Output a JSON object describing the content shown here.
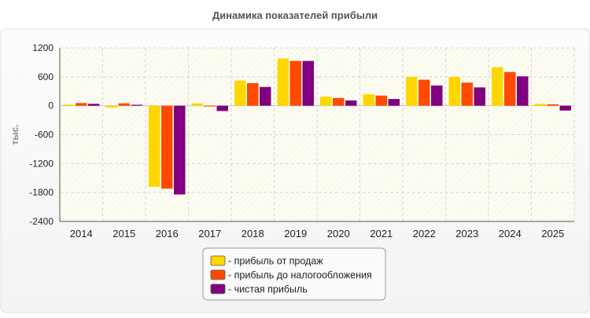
{
  "chart_data": {
    "type": "bar",
    "title": "Динамика показателей прибыли",
    "ylabel": "тыс.",
    "xlabel": "",
    "ylim": [
      -2400,
      1200
    ],
    "yticks": [
      1200,
      600,
      0,
      -600,
      -1200,
      -1800,
      -2400
    ],
    "categories": [
      "2014",
      "2015",
      "2016",
      "2017",
      "2018",
      "2019",
      "2020",
      "2021",
      "2022",
      "2023",
      "2024",
      "2025"
    ],
    "series": [
      {
        "name": "- прибыль от продаж",
        "color": "#ffd700",
        "values": [
          25,
          -40,
          -1680,
          50,
          520,
          980,
          190,
          240,
          600,
          600,
          800,
          40
        ]
      },
      {
        "name": "- прибыль до налогообложения",
        "color": "#ff4a00",
        "values": [
          55,
          50,
          -1720,
          -15,
          470,
          930,
          160,
          210,
          540,
          480,
          700,
          30
        ]
      },
      {
        "name": "- чистая прибыль",
        "color": "#800080",
        "values": [
          40,
          20,
          -1840,
          -110,
          390,
          930,
          110,
          140,
          420,
          380,
          610,
          -100
        ]
      }
    ],
    "grid": true,
    "legend_position": "bottom"
  }
}
